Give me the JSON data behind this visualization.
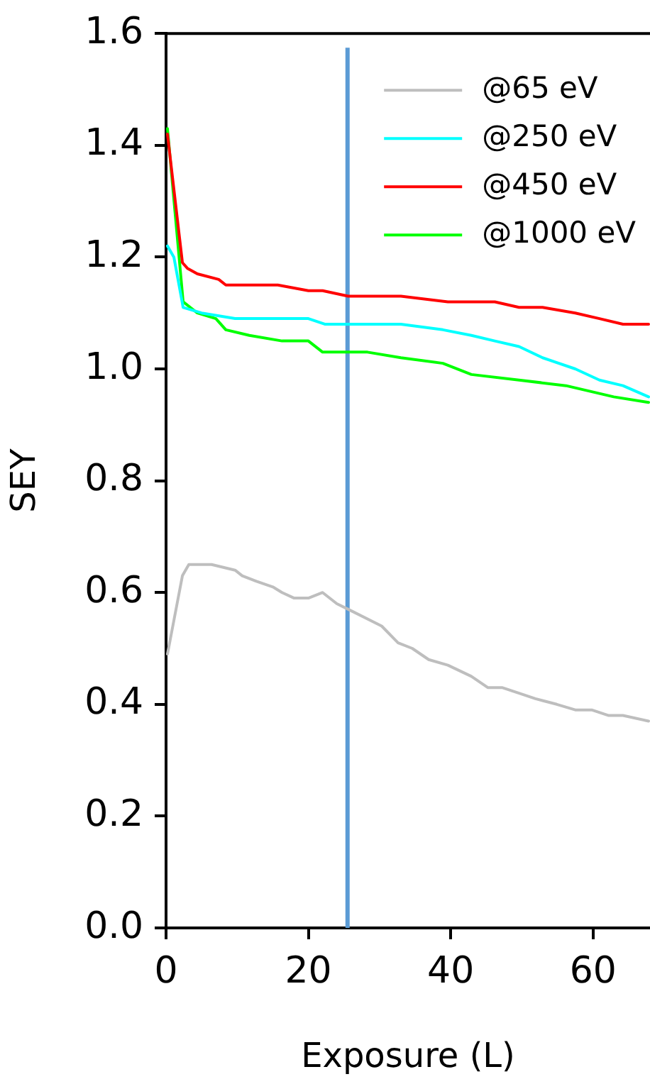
{
  "chart_data": {
    "type": "line",
    "xlabel": "Exposure (L)",
    "ylabel": "SEY",
    "xlim": [
      0,
      68
    ],
    "xticks": [
      0,
      20,
      40,
      60
    ],
    "ylim": [
      0,
      1.6
    ],
    "yticks": [
      {
        "value": 0,
        "label": "0.0"
      },
      {
        "value": 0.2,
        "label": "0.2"
      },
      {
        "value": 0.4,
        "label": "0.4"
      },
      {
        "value": 0.6,
        "label": "0.6"
      },
      {
        "value": 0.8,
        "label": "0.8"
      },
      {
        "value": 1,
        "label": "1.0"
      },
      {
        "value": 1.2,
        "label": "1.2"
      },
      {
        "value": 1.4,
        "label": "1.4"
      },
      {
        "value": 1.6,
        "label": "1.6"
      }
    ],
    "grid": false,
    "legend": "top right",
    "marker": "none",
    "line_style": "solid",
    "series": [
      {
        "name": "@65 eV",
        "color": "#bebebe",
        "x": [
          0.2,
          2.3,
          3.2,
          6.4,
          9.7,
          10.7,
          12.7,
          15,
          16.3,
          18,
          20,
          22,
          24,
          25.6,
          30.3,
          32.6,
          34.6,
          36.9,
          39.6,
          42.9,
          45.2,
          47.2,
          49.6,
          51.9,
          54.9,
          57.5,
          59.8,
          62.2,
          64.2,
          67.8
        ],
        "values": [
          0.49,
          0.63,
          0.65,
          0.65,
          0.64,
          0.63,
          0.62,
          0.61,
          0.6,
          0.59,
          0.59,
          0.6,
          0.58,
          0.57,
          0.54,
          0.51,
          0.5,
          0.48,
          0.47,
          0.45,
          0.43,
          0.43,
          0.42,
          0.41,
          0.4,
          0.39,
          0.39,
          0.38,
          0.38,
          0.37
        ]
      },
      {
        "name": "@250 eV",
        "color": "#00ffff",
        "x": [
          0.2,
          1.1,
          2.4,
          5,
          9.7,
          13.7,
          15.7,
          20,
          22.3,
          25.6,
          33,
          38.9,
          42.9,
          46.2,
          49.6,
          52.9,
          57.5,
          60.9,
          64.2,
          67.8
        ],
        "values": [
          1.22,
          1.2,
          1.11,
          1.1,
          1.09,
          1.09,
          1.09,
          1.09,
          1.08,
          1.08,
          1.08,
          1.07,
          1.06,
          1.05,
          1.04,
          1.02,
          1,
          0.98,
          0.97,
          0.95
        ]
      },
      {
        "name": "@450 eV",
        "color": "#ff0000",
        "x": [
          0.2,
          2.3,
          3,
          4.4,
          7.4,
          8.4,
          11.7,
          15.7,
          20,
          22,
          25.6,
          28.3,
          33,
          39.6,
          46.2,
          49.6,
          52.9,
          57.5,
          60.9,
          64.2,
          67.8
        ],
        "values": [
          1.42,
          1.19,
          1.18,
          1.17,
          1.16,
          1.15,
          1.15,
          1.15,
          1.14,
          1.14,
          1.13,
          1.13,
          1.13,
          1.12,
          1.12,
          1.11,
          1.11,
          1.1,
          1.09,
          1.08,
          1.08
        ]
      },
      {
        "name": "@1000 eV",
        "color": "#00ff00",
        "x": [
          0.2,
          2.4,
          4.4,
          7,
          8.4,
          11.7,
          16.3,
          20,
          22,
          25.6,
          28.3,
          33,
          38.9,
          42.9,
          49.6,
          56.2,
          62.9,
          67.8
        ],
        "values": [
          1.43,
          1.12,
          1.1,
          1.09,
          1.07,
          1.06,
          1.05,
          1.05,
          1.03,
          1.03,
          1.03,
          1.02,
          1.01,
          0.99,
          0.98,
          0.97,
          0.95,
          0.94
        ]
      }
    ],
    "ref_lines": [
      {
        "axis": "x",
        "value": 25.5,
        "color": "#5b9bd5",
        "line_style": "solid"
      }
    ]
  }
}
